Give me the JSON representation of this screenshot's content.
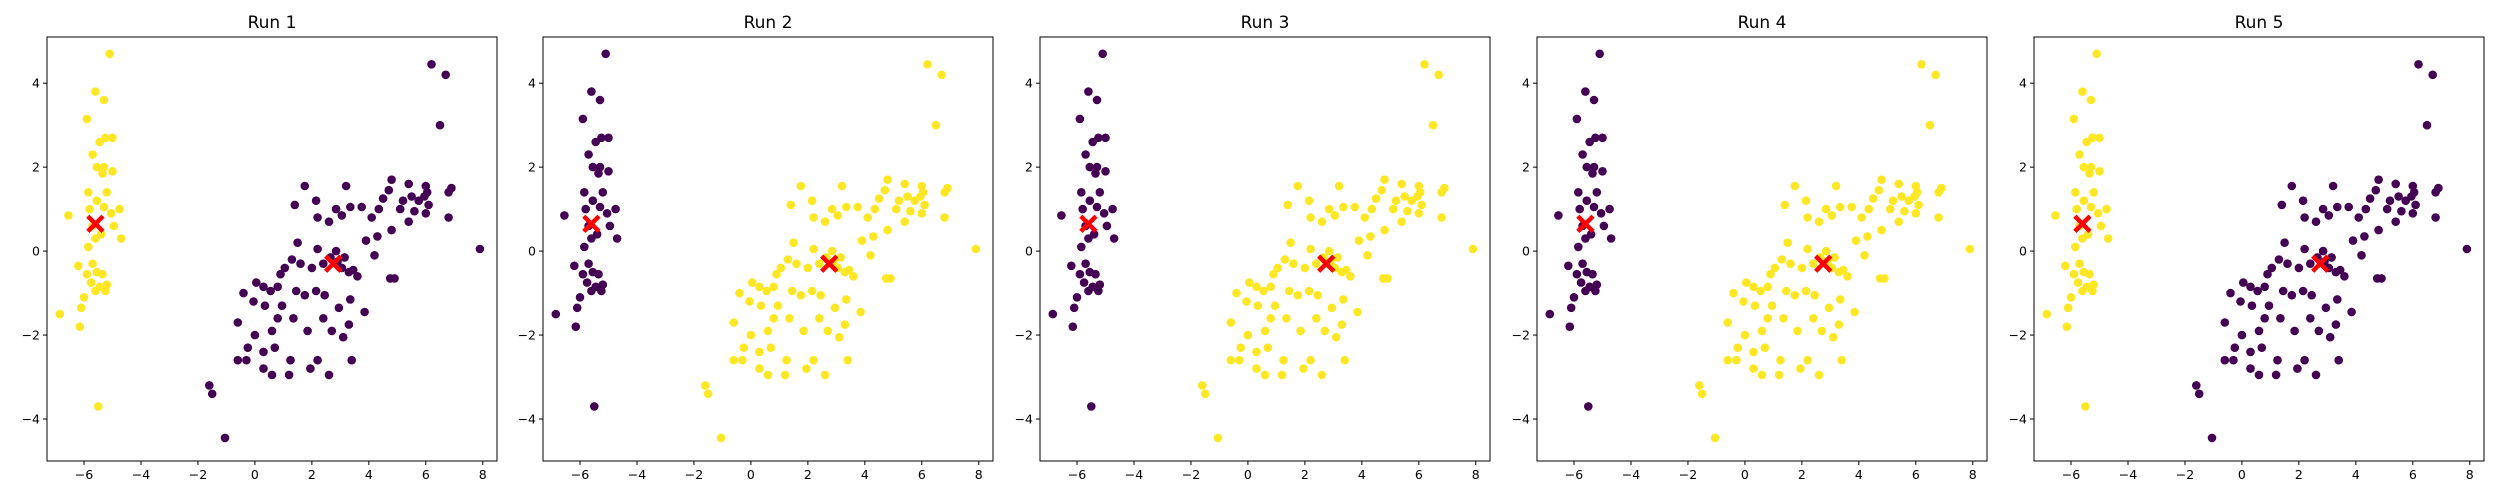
{
  "figure": {
    "background": "#ffffff"
  },
  "chart_data": [
    {
      "type": "scatter",
      "title": "Run 1",
      "xlabel": "",
      "ylabel": "",
      "xlim": [
        -7.3,
        8.5
      ],
      "ylim": [
        -5.0,
        5.1
      ],
      "xticks": [
        -6,
        -4,
        -2,
        0,
        2,
        4,
        6,
        8
      ],
      "yticks": [
        -4,
        -2,
        0,
        2,
        4
      ],
      "grid": false,
      "legend": "none",
      "assignment": {
        "cluster_a": "#fde725",
        "cluster_b": "#440154"
      },
      "centroids": [
        {
          "x": -5.6,
          "y": 0.65,
          "color": "#ff0000",
          "marker": "X"
        },
        {
          "x": 2.75,
          "y": -0.3,
          "color": "#ff0000",
          "marker": "X"
        }
      ]
    },
    {
      "type": "scatter",
      "title": "Run 2",
      "xlabel": "",
      "ylabel": "",
      "xlim": [
        -7.3,
        8.5
      ],
      "ylim": [
        -5.0,
        5.1
      ],
      "xticks": [
        -6,
        -4,
        -2,
        0,
        2,
        4,
        6,
        8
      ],
      "yticks": [
        -4,
        -2,
        0,
        2,
        4
      ],
      "grid": false,
      "legend": "none",
      "assignment": {
        "cluster_a": "#440154",
        "cluster_b": "#fde725"
      },
      "centroids": [
        {
          "x": -5.6,
          "y": 0.65,
          "color": "#ff0000",
          "marker": "X"
        },
        {
          "x": 2.75,
          "y": -0.3,
          "color": "#ff0000",
          "marker": "X"
        }
      ]
    },
    {
      "type": "scatter",
      "title": "Run 3",
      "xlabel": "",
      "ylabel": "",
      "xlim": [
        -7.3,
        8.5
      ],
      "ylim": [
        -5.0,
        5.1
      ],
      "xticks": [
        -6,
        -4,
        -2,
        0,
        2,
        4,
        6,
        8
      ],
      "yticks": [
        -4,
        -2,
        0,
        2,
        4
      ],
      "grid": false,
      "legend": "none",
      "assignment": {
        "cluster_a": "#440154",
        "cluster_b": "#fde725"
      },
      "centroids": [
        {
          "x": -5.6,
          "y": 0.65,
          "color": "#ff0000",
          "marker": "X"
        },
        {
          "x": 2.75,
          "y": -0.3,
          "color": "#ff0000",
          "marker": "X"
        }
      ]
    },
    {
      "type": "scatter",
      "title": "Run 4",
      "xlabel": "",
      "ylabel": "",
      "xlim": [
        -7.3,
        8.5
      ],
      "ylim": [
        -5.0,
        5.1
      ],
      "xticks": [
        -6,
        -4,
        -2,
        0,
        2,
        4,
        6,
        8
      ],
      "yticks": [
        -4,
        -2,
        0,
        2,
        4
      ],
      "grid": false,
      "legend": "none",
      "assignment": {
        "cluster_a": "#440154",
        "cluster_b": "#fde725"
      },
      "centroids": [
        {
          "x": -5.6,
          "y": 0.65,
          "color": "#ff0000",
          "marker": "X"
        },
        {
          "x": 2.75,
          "y": -0.3,
          "color": "#ff0000",
          "marker": "X"
        }
      ]
    },
    {
      "type": "scatter",
      "title": "Run 5",
      "xlabel": "",
      "ylabel": "",
      "xlim": [
        -7.3,
        8.5
      ],
      "ylim": [
        -5.0,
        5.1
      ],
      "xticks": [
        -6,
        -4,
        -2,
        0,
        2,
        4,
        6,
        8
      ],
      "yticks": [
        -4,
        -2,
        0,
        2,
        4
      ],
      "grid": false,
      "legend": "none",
      "assignment": {
        "cluster_a": "#fde725",
        "cluster_b": "#440154"
      },
      "centroids": [
        {
          "x": -5.6,
          "y": 0.65,
          "color": "#ff0000",
          "marker": "X"
        },
        {
          "x": 2.75,
          "y": -0.3,
          "color": "#ff0000",
          "marker": "X"
        }
      ]
    }
  ],
  "points": {
    "cluster_a": [
      [
        -5.1,
        4.7
      ],
      [
        -5.6,
        3.8
      ],
      [
        -5.3,
        3.6
      ],
      [
        -5.9,
        3.15
      ],
      [
        -5.0,
        2.7
      ],
      [
        -5.25,
        2.7
      ],
      [
        -5.45,
        2.6
      ],
      [
        -5.7,
        2.3
      ],
      [
        -5.3,
        2.0
      ],
      [
        -5.55,
        2.0
      ],
      [
        -5.35,
        1.85
      ],
      [
        -5.0,
        1.9
      ],
      [
        -5.85,
        1.4
      ],
      [
        -5.2,
        1.4
      ],
      [
        -5.55,
        1.2
      ],
      [
        -5.3,
        1.05
      ],
      [
        -5.8,
        1.0
      ],
      [
        -6.55,
        0.85
      ],
      [
        -4.75,
        1.0
      ],
      [
        -5.05,
        0.9
      ],
      [
        -4.95,
        0.6
      ],
      [
        -5.7,
        0.6
      ],
      [
        -5.4,
        0.4
      ],
      [
        -5.6,
        0.3
      ],
      [
        -4.7,
        0.3
      ],
      [
        -5.85,
        0.1
      ],
      [
        -5.7,
        -0.3
      ],
      [
        -6.2,
        -0.35
      ],
      [
        -5.9,
        -0.55
      ],
      [
        -5.55,
        -0.5
      ],
      [
        -5.35,
        -0.55
      ],
      [
        -5.75,
        -0.75
      ],
      [
        -5.2,
        -0.8
      ],
      [
        -5.45,
        -0.85
      ],
      [
        -5.6,
        -0.95
      ],
      [
        -5.25,
        -0.95
      ],
      [
        -6.0,
        -1.1
      ],
      [
        -6.1,
        -1.35
      ],
      [
        -6.85,
        -1.5
      ],
      [
        -6.15,
        -1.8
      ],
      [
        -5.5,
        -3.7
      ]
    ],
    "cluster_b": [
      [
        6.2,
        4.45
      ],
      [
        6.7,
        4.2
      ],
      [
        6.5,
        3.0
      ],
      [
        6.9,
        1.5
      ],
      [
        6.8,
        1.4
      ],
      [
        6.0,
        1.55
      ],
      [
        6.05,
        1.4
      ],
      [
        5.95,
        1.3
      ],
      [
        6.1,
        1.1
      ],
      [
        5.75,
        1.2
      ],
      [
        6.0,
        0.9
      ],
      [
        6.8,
        0.8
      ],
      [
        7.9,
        0.05
      ],
      [
        5.4,
        1.6
      ],
      [
        5.5,
        1.3
      ],
      [
        5.2,
        1.2
      ],
      [
        5.1,
        1.0
      ],
      [
        5.6,
        0.95
      ],
      [
        5.4,
        0.7
      ],
      [
        4.8,
        1.7
      ],
      [
        4.7,
        1.45
      ],
      [
        4.5,
        1.25
      ],
      [
        4.35,
        1.0
      ],
      [
        4.1,
        0.8
      ],
      [
        4.8,
        0.5
      ],
      [
        4.3,
        0.35
      ],
      [
        4.9,
        -0.65
      ],
      [
        4.75,
        -0.65
      ],
      [
        4.2,
        -0.1
      ],
      [
        3.9,
        0.25
      ],
      [
        3.75,
        1.05
      ],
      [
        3.35,
        1.05
      ],
      [
        3.2,
        1.55
      ],
      [
        2.85,
        1.0
      ],
      [
        3.05,
        0.85
      ],
      [
        2.6,
        0.7
      ],
      [
        2.2,
        0.8
      ],
      [
        1.75,
        1.55
      ],
      [
        1.4,
        1.1
      ],
      [
        2.15,
        1.2
      ],
      [
        1.5,
        0.2
      ],
      [
        2.2,
        0.05
      ],
      [
        2.85,
        0.0
      ],
      [
        2.65,
        -0.15
      ],
      [
        2.9,
        -0.25
      ],
      [
        3.05,
        -0.4
      ],
      [
        3.3,
        -0.5
      ],
      [
        3.45,
        -0.45
      ],
      [
        3.6,
        -0.6
      ],
      [
        3.15,
        -0.15
      ],
      [
        2.4,
        -0.3
      ],
      [
        2.0,
        -0.4
      ],
      [
        1.6,
        -0.3
      ],
      [
        1.3,
        -0.2
      ],
      [
        1.05,
        -0.4
      ],
      [
        0.9,
        -0.55
      ],
      [
        0.8,
        -0.85
      ],
      [
        0.55,
        -0.95
      ],
      [
        0.3,
        -0.85
      ],
      [
        0.05,
        -0.75
      ],
      [
        -0.4,
        -1.0
      ],
      [
        -0.05,
        -1.2
      ],
      [
        0.35,
        -1.3
      ],
      [
        0.95,
        -1.3
      ],
      [
        1.45,
        -0.95
      ],
      [
        1.75,
        -1.05
      ],
      [
        2.15,
        -0.95
      ],
      [
        2.45,
        -1.05
      ],
      [
        2.95,
        -1.35
      ],
      [
        3.35,
        -1.15
      ],
      [
        3.85,
        -1.45
      ],
      [
        2.4,
        -1.6
      ],
      [
        2.7,
        -1.9
      ],
      [
        1.85,
        -1.9
      ],
      [
        1.35,
        -1.6
      ],
      [
        0.8,
        -1.6
      ],
      [
        0.6,
        -1.9
      ],
      [
        0.0,
        -2.0
      ],
      [
        -0.6,
        -1.7
      ],
      [
        -0.25,
        -2.3
      ],
      [
        0.3,
        -2.4
      ],
      [
        0.7,
        -2.3
      ],
      [
        1.25,
        -2.6
      ],
      [
        -0.6,
        -2.6
      ],
      [
        -0.3,
        -2.6
      ],
      [
        0.3,
        -2.8
      ],
      [
        0.6,
        -2.95
      ],
      [
        1.2,
        -2.95
      ],
      [
        1.95,
        -2.8
      ],
      [
        2.2,
        -2.6
      ],
      [
        2.6,
        -2.95
      ],
      [
        3.4,
        -2.6
      ],
      [
        3.3,
        -1.75
      ],
      [
        3.1,
        -2.05
      ],
      [
        -1.6,
        -3.2
      ],
      [
        -1.5,
        -3.4
      ],
      [
        -1.05,
        -4.45
      ]
    ]
  }
}
